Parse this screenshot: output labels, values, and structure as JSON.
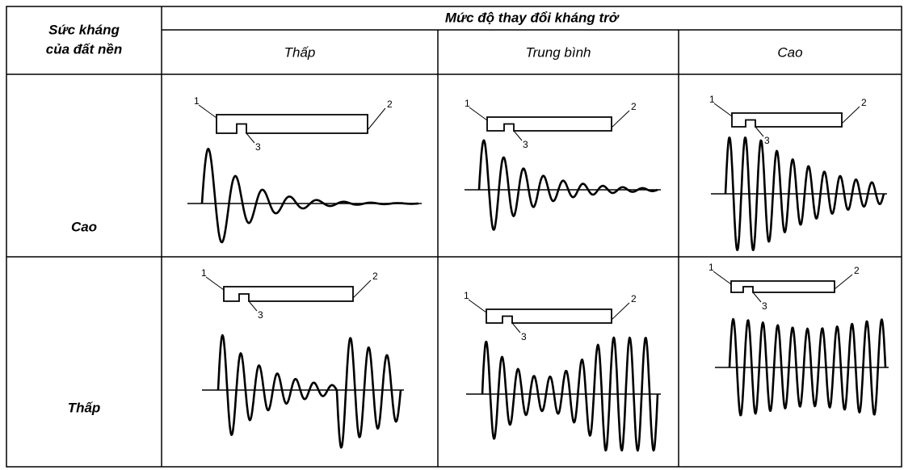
{
  "header": {
    "row_header_lines": [
      "Sức kháng",
      "của đất nền"
    ],
    "group_title": "Mức độ thay đổi kháng trở",
    "columns": [
      "Thấp",
      "Trung bình",
      "Cao"
    ]
  },
  "rows": [
    {
      "label": "Cao"
    },
    {
      "label": "Thấp"
    }
  ],
  "callouts": [
    "1",
    "2",
    "3"
  ]
}
